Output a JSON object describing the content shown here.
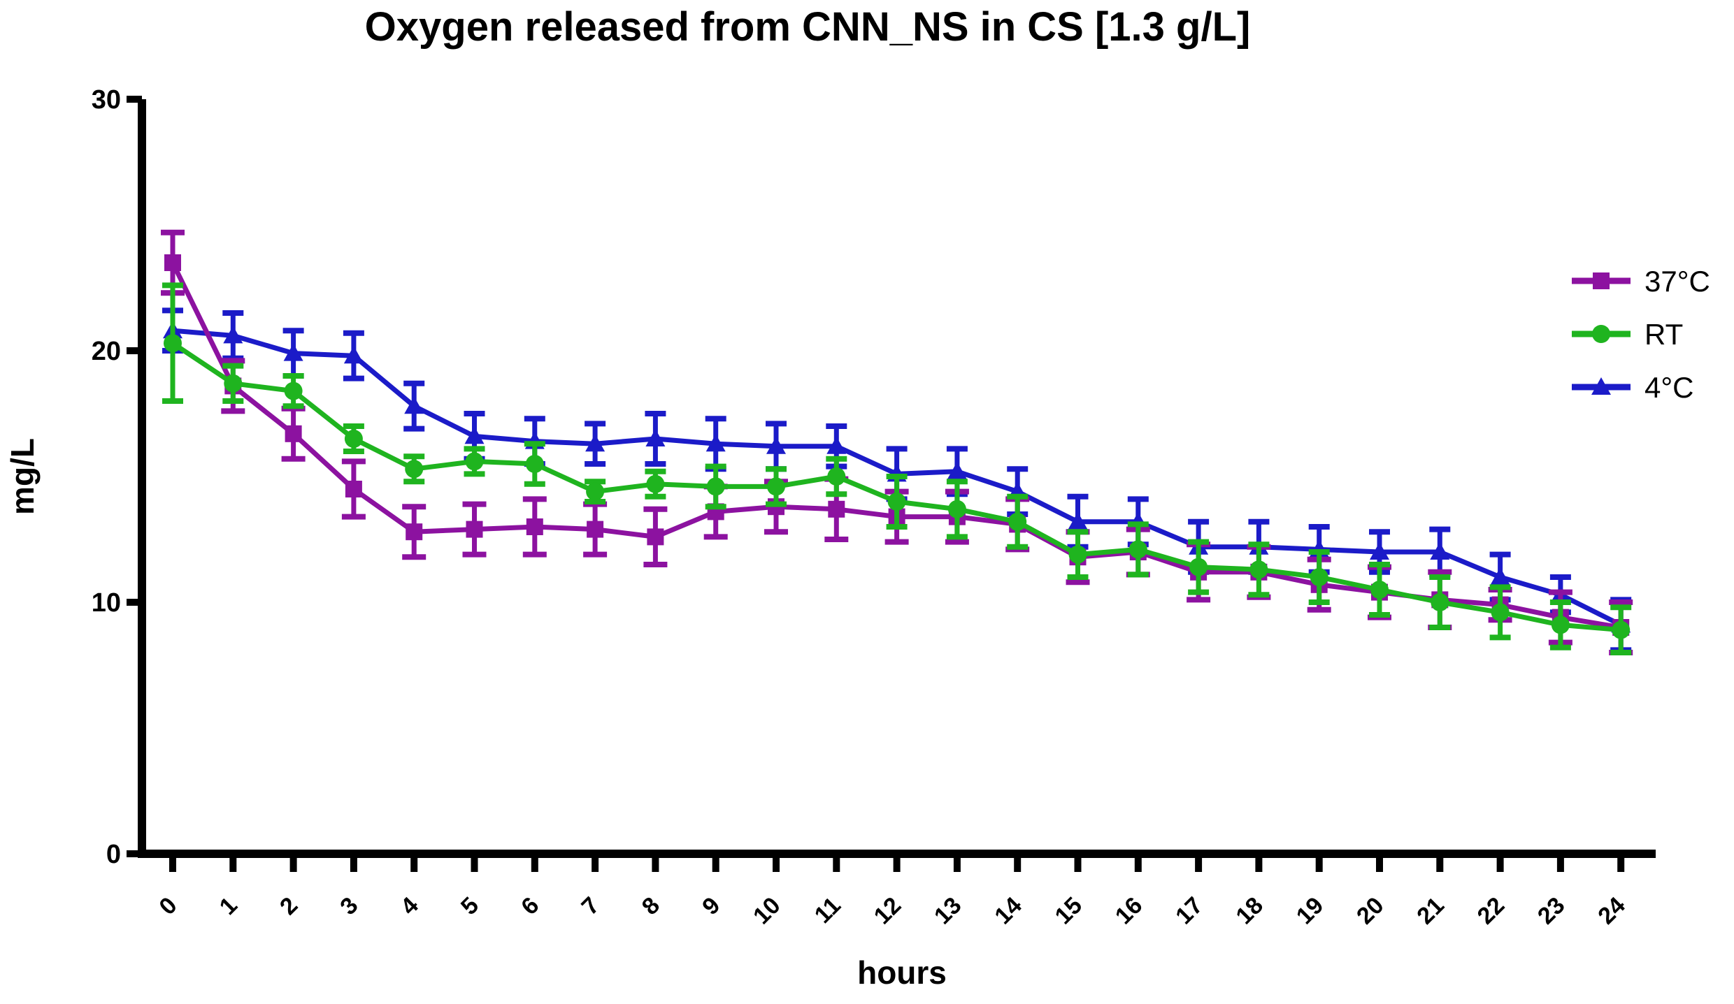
{
  "chart_data": {
    "type": "line",
    "title": "Oxygen released from CNN_NS in CS [1.3 g/L]",
    "xlabel": "hours",
    "ylabel": "mg/L",
    "x": [
      0,
      1,
      2,
      3,
      4,
      5,
      6,
      7,
      8,
      9,
      10,
      11,
      12,
      13,
      14,
      15,
      16,
      17,
      18,
      19,
      20,
      21,
      22,
      23,
      24
    ],
    "ylim": [
      0,
      30
    ],
    "yticks": [
      0,
      10,
      20,
      30
    ],
    "grid": false,
    "legend_position": "right",
    "axis_color": "#000000",
    "background_color": "#ffffff",
    "series": [
      {
        "name": "37°C",
        "color": "#8C12A0",
        "marker": "square",
        "values": [
          23.5,
          18.6,
          16.7,
          14.5,
          12.8,
          12.9,
          13.0,
          12.9,
          12.6,
          13.6,
          13.8,
          13.7,
          13.4,
          13.4,
          13.1,
          11.8,
          12.0,
          11.2,
          11.2,
          10.7,
          10.4,
          10.1,
          9.9,
          9.4,
          9.0
        ],
        "errors": [
          1.2,
          1.0,
          1.0,
          1.1,
          1.0,
          1.0,
          1.1,
          1.0,
          1.1,
          1.0,
          1.0,
          1.2,
          1.0,
          1.0,
          1.0,
          1.0,
          0.9,
          1.1,
          1.0,
          1.0,
          1.0,
          1.1,
          0.6,
          1.0,
          1.0
        ]
      },
      {
        "name": "RT",
        "color": "#1FB41F",
        "marker": "circle",
        "values": [
          20.3,
          18.7,
          18.4,
          16.5,
          15.3,
          15.6,
          15.5,
          14.4,
          14.7,
          14.6,
          14.6,
          15.0,
          14.0,
          13.7,
          13.2,
          11.9,
          12.1,
          11.4,
          11.3,
          11.0,
          10.5,
          10.0,
          9.6,
          9.1,
          8.9
        ],
        "errors": [
          2.3,
          0.7,
          0.6,
          0.5,
          0.5,
          0.5,
          0.8,
          0.4,
          0.5,
          0.8,
          0.7,
          0.7,
          1.0,
          1.1,
          1.0,
          0.9,
          1.0,
          1.0,
          1.0,
          1.0,
          1.0,
          1.0,
          1.0,
          0.9,
          0.9
        ]
      },
      {
        "name": "4°C",
        "color": "#1B1BC8",
        "marker": "triangle",
        "values": [
          20.8,
          20.6,
          19.9,
          19.8,
          17.8,
          16.6,
          16.4,
          16.3,
          16.5,
          16.3,
          16.2,
          16.2,
          15.1,
          15.2,
          14.4,
          13.2,
          13.2,
          12.2,
          12.2,
          12.1,
          12.0,
          12.0,
          11.0,
          10.3,
          9.1
        ],
        "errors": [
          0.8,
          0.9,
          0.9,
          0.9,
          0.9,
          0.9,
          0.9,
          0.8,
          1.0,
          1.0,
          0.9,
          0.8,
          1.0,
          0.9,
          0.9,
          1.0,
          0.9,
          1.0,
          1.0,
          0.9,
          0.8,
          0.9,
          0.9,
          0.7,
          1.0
        ]
      }
    ]
  }
}
